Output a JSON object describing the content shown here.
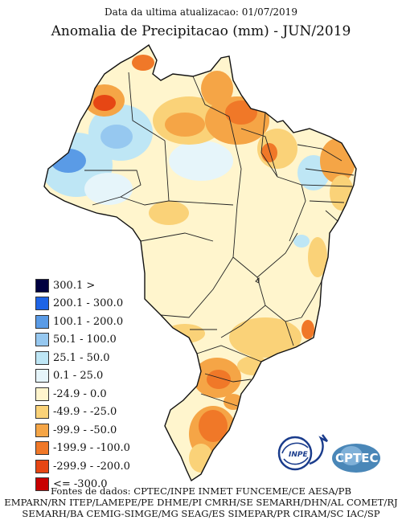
{
  "header": {
    "update_text": "Data da ultima atualizacao: 01/07/2019",
    "title": "Anomalia de Precipitacao (mm) - JUN/2019"
  },
  "legend": {
    "items": [
      {
        "label": "300.1 >",
        "color": "#000040"
      },
      {
        "label": "200.1 - 300.0",
        "color": "#1e64e6"
      },
      {
        "label": "100.1 - 200.0",
        "color": "#5a9be6"
      },
      {
        "label": "50.1 - 100.0",
        "color": "#96c8f0"
      },
      {
        "label": "25.1 - 50.0",
        "color": "#bee6f5"
      },
      {
        "label": "0.1 - 25.0",
        "color": "#e6f5fa"
      },
      {
        "label": "-24.9 - 0.0",
        "color": "#fff5cd"
      },
      {
        "label": "-49.9 - -25.0",
        "color": "#fad278"
      },
      {
        "label": "-99.9 - -50.0",
        "color": "#f5a546"
      },
      {
        "label": "-199.9 - -100.0",
        "color": "#f07828"
      },
      {
        "label": "-299.9 - -200.0",
        "color": "#e64614"
      },
      {
        "label": "<= -300.0",
        "color": "#c80000"
      }
    ]
  },
  "logos": {
    "inpe_text": "INPE",
    "cptec_text": "CPTEC"
  },
  "footer": {
    "lines": [
      "Fontes de dados: CPTEC/INPE INMET FUNCEME/CE AESA/PB",
      "EMPARN/RN ITEP/LAMEPE/PE DHME/PI CMRH/SE SEMARH/DHN/AL COMET/RJ",
      "SEMARH/BA CEMIG-SIMGE/MG SEAG/ES SIMEPAR/PR CIRAM/SC IAC/SP"
    ]
  }
}
